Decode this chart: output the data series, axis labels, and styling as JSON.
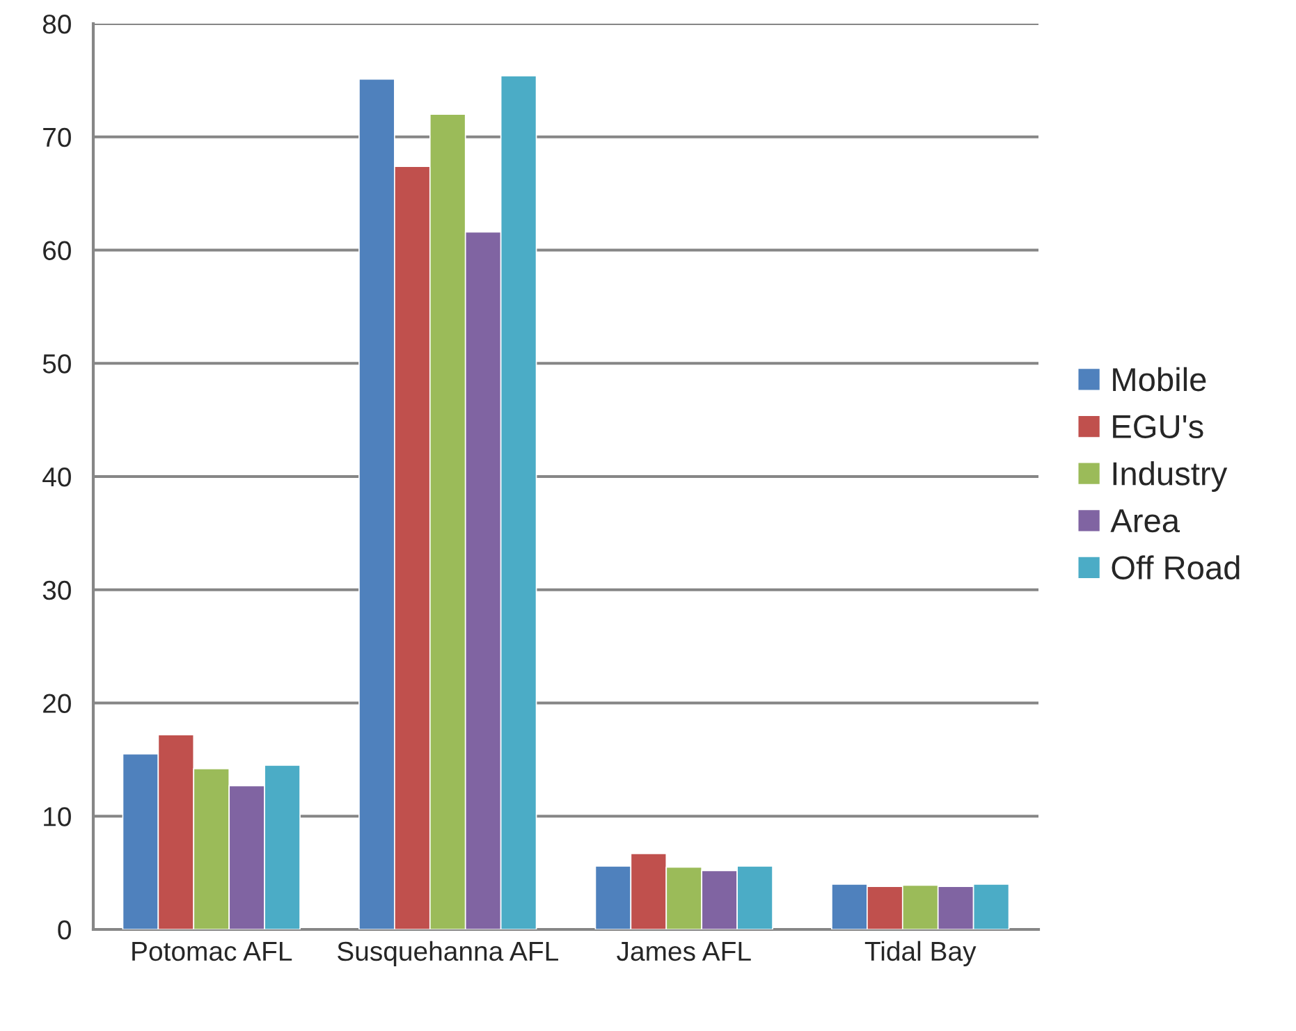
{
  "chart_data": {
    "type": "bar",
    "categories": [
      "Potomac AFL",
      "Susquehanna AFL",
      "James AFL",
      "Tidal Bay"
    ],
    "series": [
      {
        "name": "Mobile",
        "color": "#4f81bd",
        "values": [
          15.5,
          75.1,
          5.6,
          4.0
        ]
      },
      {
        "name": "EGU's",
        "color": "#c0504d",
        "values": [
          17.2,
          67.4,
          6.7,
          3.8
        ]
      },
      {
        "name": "Industry",
        "color": "#9bbb59",
        "values": [
          14.2,
          72.0,
          5.5,
          3.9
        ]
      },
      {
        "name": "Area",
        "color": "#8064a2",
        "values": [
          12.7,
          61.6,
          5.2,
          3.8
        ]
      },
      {
        "name": "Off Road",
        "color": "#4bacc6",
        "values": [
          14.5,
          75.4,
          5.6,
          4.0
        ]
      }
    ],
    "ylim": [
      0,
      80
    ],
    "yticks": [
      0,
      10,
      20,
      30,
      40,
      50,
      60,
      70,
      80
    ],
    "grid": "y",
    "legend": "right"
  }
}
